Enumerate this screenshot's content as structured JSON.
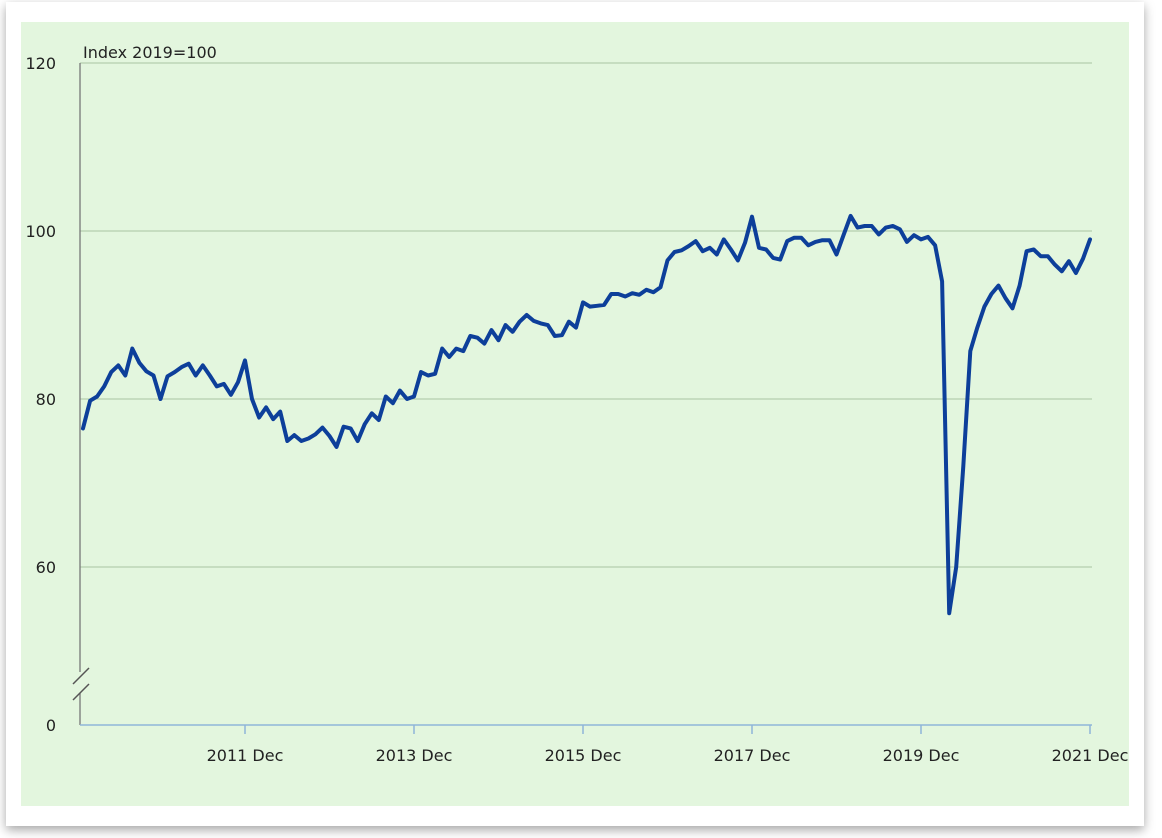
{
  "chart_data": {
    "type": "line",
    "unit_label": "Index 2019=100",
    "x_tick_labels": [
      "2011 Dec",
      "2013 Dec",
      "2015 Dec",
      "2017 Dec",
      "2019 Dec",
      "2021 Dec"
    ],
    "y_tick_labels": [
      "0",
      "60",
      "80",
      "100",
      "120"
    ],
    "y_axis_break": true,
    "ylim": [
      50,
      120
    ],
    "grid": true,
    "series": [
      {
        "color": "#0d3f9a",
        "x": [
          "2010-01",
          "2010-02",
          "2010-03",
          "2010-04",
          "2010-05",
          "2010-06",
          "2010-07",
          "2010-08",
          "2010-09",
          "2010-10",
          "2010-11",
          "2010-12",
          "2011-01",
          "2011-02",
          "2011-03",
          "2011-04",
          "2011-05",
          "2011-06",
          "2011-07",
          "2011-08",
          "2011-09",
          "2011-10",
          "2011-11",
          "2011-12",
          "2012-01",
          "2012-02",
          "2012-03",
          "2012-04",
          "2012-05",
          "2012-06",
          "2012-07",
          "2012-08",
          "2012-09",
          "2012-10",
          "2012-11",
          "2012-12",
          "2013-01",
          "2013-02",
          "2013-03",
          "2013-04",
          "2013-05",
          "2013-06",
          "2013-07",
          "2013-08",
          "2013-09",
          "2013-10",
          "2013-11",
          "2013-12",
          "2014-01",
          "2014-02",
          "2014-03",
          "2014-04",
          "2014-05",
          "2014-06",
          "2014-07",
          "2014-08",
          "2014-09",
          "2014-10",
          "2014-11",
          "2014-12",
          "2015-01",
          "2015-02",
          "2015-03",
          "2015-04",
          "2015-05",
          "2015-06",
          "2015-07",
          "2015-08",
          "2015-09",
          "2015-10",
          "2015-11",
          "2015-12",
          "2016-01",
          "2016-02",
          "2016-03",
          "2016-04",
          "2016-05",
          "2016-06",
          "2016-07",
          "2016-08",
          "2016-09",
          "2016-10",
          "2016-11",
          "2016-12",
          "2017-01",
          "2017-02",
          "2017-03",
          "2017-04",
          "2017-05",
          "2017-06",
          "2017-07",
          "2017-08",
          "2017-09",
          "2017-10",
          "2017-11",
          "2017-12",
          "2018-01",
          "2018-02",
          "2018-03",
          "2018-04",
          "2018-05",
          "2018-06",
          "2018-07",
          "2018-08",
          "2018-09",
          "2018-10",
          "2018-11",
          "2018-12",
          "2019-01",
          "2019-02",
          "2019-03",
          "2019-04",
          "2019-05",
          "2019-06",
          "2019-07",
          "2019-08",
          "2019-09",
          "2019-10",
          "2019-11",
          "2019-12",
          "2020-01",
          "2020-02",
          "2020-03",
          "2020-04",
          "2020-05",
          "2020-06",
          "2020-07",
          "2020-08",
          "2020-09",
          "2020-10",
          "2020-11",
          "2020-12",
          "2021-01",
          "2021-02",
          "2021-03",
          "2021-04",
          "2021-05",
          "2021-06",
          "2021-07",
          "2021-08",
          "2021-09",
          "2021-10",
          "2021-11",
          "2021-12"
        ],
        "values": [
          76.5,
          79.8,
          80.3,
          81.5,
          83.2,
          84.0,
          82.8,
          86.0,
          84.3,
          83.3,
          82.8,
          80.0,
          82.7,
          83.2,
          83.8,
          84.2,
          82.8,
          84.0,
          82.8,
          81.5,
          81.8,
          80.5,
          82.0,
          84.6,
          80.0,
          77.8,
          79.0,
          77.6,
          78.5,
          75.0,
          75.7,
          75.0,
          75.3,
          75.8,
          76.6,
          75.6,
          74.3,
          76.7,
          76.5,
          75.0,
          77.0,
          78.3,
          77.5,
          80.3,
          79.5,
          81.0,
          80.0,
          80.3,
          83.2,
          82.8,
          83.0,
          86.0,
          85.0,
          86.0,
          85.7,
          87.5,
          87.3,
          86.6,
          88.2,
          87.0,
          88.8,
          88.0,
          89.2,
          90.0,
          89.3,
          89.0,
          88.8,
          87.5,
          87.6,
          89.2,
          88.5,
          91.5,
          91.0,
          91.1,
          91.2,
          92.5,
          92.5,
          92.2,
          92.6,
          92.4,
          93.0,
          92.7,
          93.3,
          96.5,
          97.5,
          97.7,
          98.2,
          98.8,
          97.6,
          98.0,
          97.2,
          99.0,
          97.8,
          96.5,
          98.6,
          101.7,
          98.0,
          97.8,
          96.8,
          96.6,
          98.8,
          99.2,
          99.2,
          98.3,
          98.7,
          98.9,
          98.9,
          97.2,
          99.5,
          101.8,
          100.4,
          100.6,
          100.6,
          99.6,
          100.4,
          100.6,
          100.2,
          98.7,
          99.5,
          99.0,
          99.3,
          98.3,
          94.0,
          54.5,
          60.0,
          72.0,
          85.7,
          88.5,
          91.0,
          92.5,
          93.5,
          92.0,
          90.8,
          93.5,
          97.6,
          97.8,
          97.0,
          97.0,
          96.0,
          95.2,
          96.4,
          95.0,
          96.7,
          99.0
        ]
      }
    ]
  }
}
